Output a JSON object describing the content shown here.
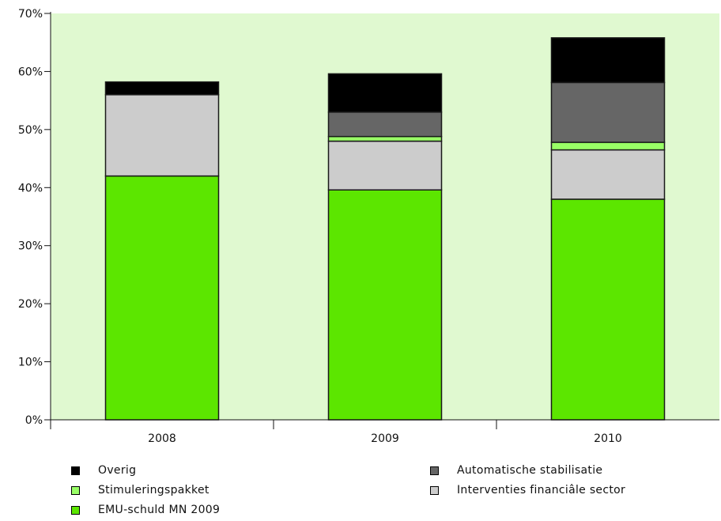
{
  "chart_data": {
    "type": "bar",
    "stacked": true,
    "categories": [
      "2008",
      "2009",
      "2010"
    ],
    "series": [
      {
        "name": "EMU-schuld MN 2009",
        "color": "#5ce600",
        "values": [
          42.0,
          39.6,
          38.0
        ]
      },
      {
        "name": "Interventies financiâle sector",
        "color": "#cccccc",
        "values": [
          14.0,
          8.4,
          8.5
        ]
      },
      {
        "name": "Stimuleringspakket",
        "color": "#99ff66",
        "values": [
          0.0,
          0.8,
          1.3
        ]
      },
      {
        "name": "Automatische stabilisatie",
        "color": "#666666",
        "values": [
          0.0,
          4.2,
          10.3
        ]
      },
      {
        "name": "Overig",
        "color": "#000000",
        "values": [
          2.2,
          6.6,
          7.7
        ]
      }
    ],
    "y_ticks": [
      "0%",
      "10%",
      "20%",
      "30%",
      "40%",
      "50%",
      "60%",
      "70%"
    ],
    "ylim": [
      0,
      70
    ],
    "title": "",
    "xlabel": "",
    "ylabel": "",
    "plot_background": "#e0f9d0",
    "grid": false,
    "legend_position": "bottom"
  },
  "legend": [
    {
      "key": "overig",
      "label": "Overig",
      "color": "#000000"
    },
    {
      "key": "stimuleringspakket",
      "label": "Stimuleringspakket",
      "color": "#99ff66"
    },
    {
      "key": "emu",
      "label": "EMU-schuld MN 2009",
      "color": "#5ce600"
    },
    {
      "key": "automatische",
      "label": "Automatische stabilisatie",
      "color": "#666666"
    },
    {
      "key": "interventies",
      "label": "Interventies financiâle sector",
      "color": "#cccccc"
    }
  ]
}
